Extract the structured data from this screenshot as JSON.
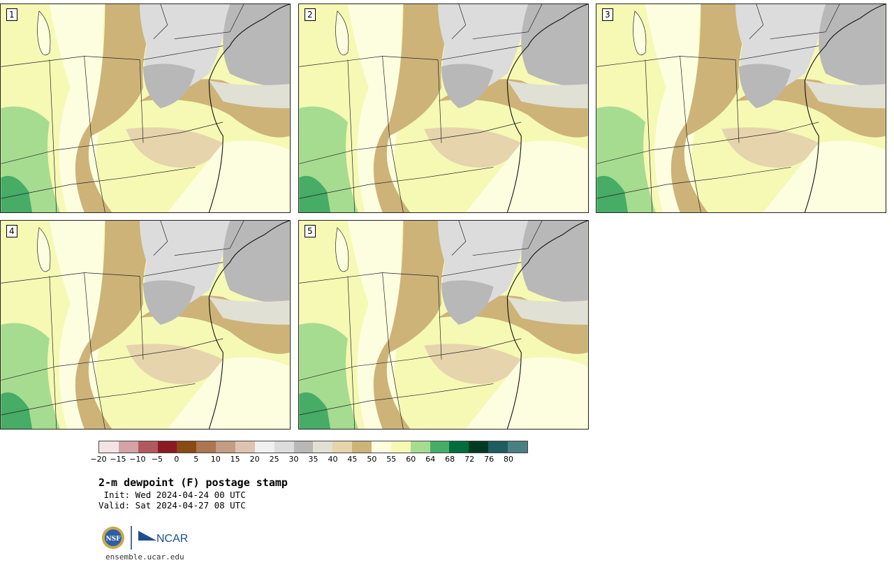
{
  "panels": [
    {
      "label": "1"
    },
    {
      "label": "2"
    },
    {
      "label": "3"
    },
    {
      "label": "4"
    },
    {
      "label": "5"
    }
  ],
  "colorbar": {
    "colors": [
      "#f2e4e4",
      "#d4a3a5",
      "#b05a60",
      "#8c1a22",
      "#8a4a14",
      "#ab7651",
      "#c49c84",
      "#dfc3b2",
      "#f0f0f0",
      "#dcdcdc",
      "#b8b8b8",
      "#e0e0d4",
      "#e6d4ac",
      "#cdb378",
      "#fdfde0",
      "#f5f9b4",
      "#a6dc90",
      "#46ac66",
      "#006e3c",
      "#003a22",
      "#1e5c60",
      "#4a8082"
    ],
    "ticks": [
      "−20",
      "−15",
      "−10",
      "−5",
      "0",
      "5",
      "10",
      "15",
      "20",
      "25",
      "30",
      "35",
      "40",
      "45",
      "50",
      "55",
      "60",
      "64",
      "68",
      "72",
      "76",
      "80"
    ]
  },
  "title": "2-m dewpoint (F) postage stamp",
  "init": " Init: Wed 2024-04-24 00 UTC",
  "valid": "Valid: Sat 2024-04-27 08 UTC",
  "logo": {
    "nsf": "NSF",
    "ncar": "NCAR"
  },
  "site": "ensemble.ucar.edu",
  "map_colors": {
    "gray": "#b8b8b8",
    "light_gray": "#dcdcdc",
    "beige": "#e0e0d4",
    "tan": "#cdb378",
    "light_tan": "#e6d4ac",
    "pale_yellow": "#fdfde0",
    "yellow": "#f5f9b4",
    "light_green": "#a6dc90",
    "green": "#46ac66",
    "brown": "#ab7651"
  }
}
